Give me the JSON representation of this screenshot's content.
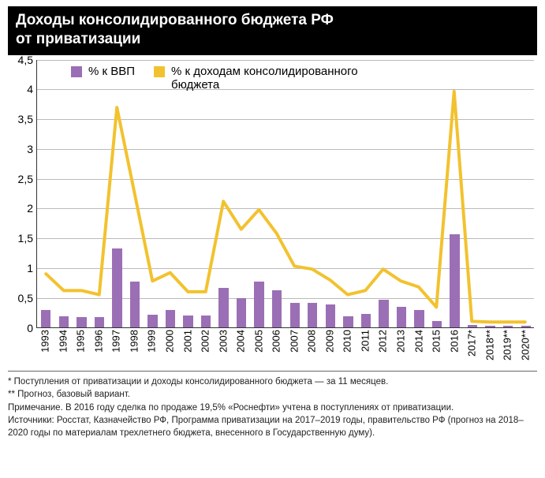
{
  "title_line1": "Доходы консолидированного бюджета РФ",
  "title_line2": "от приватизации",
  "chart": {
    "type": "bar+line",
    "background_color": "#ffffff",
    "grid_color": "#bbbbbb",
    "axis_color": "#333333",
    "ylim": [
      0,
      4.5
    ],
    "ytick_step": 0.5,
    "ytick_labels": [
      "0",
      "0,5",
      "1",
      "1,5",
      "2",
      "2,5",
      "3",
      "3,5",
      "4",
      "4,5"
    ],
    "categories": [
      "1993",
      "1994",
      "1995",
      "1996",
      "1997",
      "1998",
      "1999",
      "2000",
      "2001",
      "2002",
      "2003",
      "2004",
      "2005",
      "2006",
      "2007",
      "2008",
      "2009",
      "2010",
      "2011",
      "2012",
      "2013",
      "2014",
      "2015",
      "2016",
      "2017*",
      "2018**",
      "2019**",
      "2020**"
    ],
    "series_bar": {
      "label": "% к ВВП",
      "color": "#9b6fb5",
      "bar_width_ratio": 0.55,
      "values": [
        0.28,
        0.18,
        0.17,
        0.16,
        1.32,
        0.76,
        0.2,
        0.28,
        0.19,
        0.19,
        0.66,
        0.48,
        0.76,
        0.61,
        0.41,
        0.4,
        0.38,
        0.18,
        0.22,
        0.46,
        0.34,
        0.28,
        0.1,
        1.55,
        0.03,
        0.02,
        0.02,
        0.02
      ]
    },
    "series_line": {
      "label": "% к доходам консолидированного бюджета",
      "color": "#f2c22e",
      "line_width": 4,
      "values": [
        0.9,
        0.62,
        0.62,
        0.55,
        3.7,
        2.25,
        0.78,
        0.92,
        0.6,
        0.6,
        2.12,
        1.65,
        1.98,
        1.58,
        1.03,
        0.98,
        0.8,
        0.55,
        0.62,
        0.98,
        0.78,
        0.68,
        0.34,
        3.97,
        0.1,
        0.09,
        0.09,
        0.09
      ]
    },
    "legend_position": "top-inside",
    "label_fontsize": 14,
    "xlabel_fontsize": 13,
    "xlabel_rotation": -90
  },
  "footnotes": {
    "line1": "* Поступления от приватизации и доходы консолидированного бюджета — за 11 месяцев.",
    "line2": "** Прогноз, базовый вариант.",
    "line3": "Примечание. В 2016 году сделка по продаже 19,5% «Роснефти» учтена в поступлениях от приватизации.",
    "line4": "Источники: Росстат, Казначейство РФ, Программа приватизации на 2017–2019 годы, правительство РФ (прогноз на 2018–2020 годы по материалам трехлетнего бюджета, внесенного в Государственную думу)."
  }
}
